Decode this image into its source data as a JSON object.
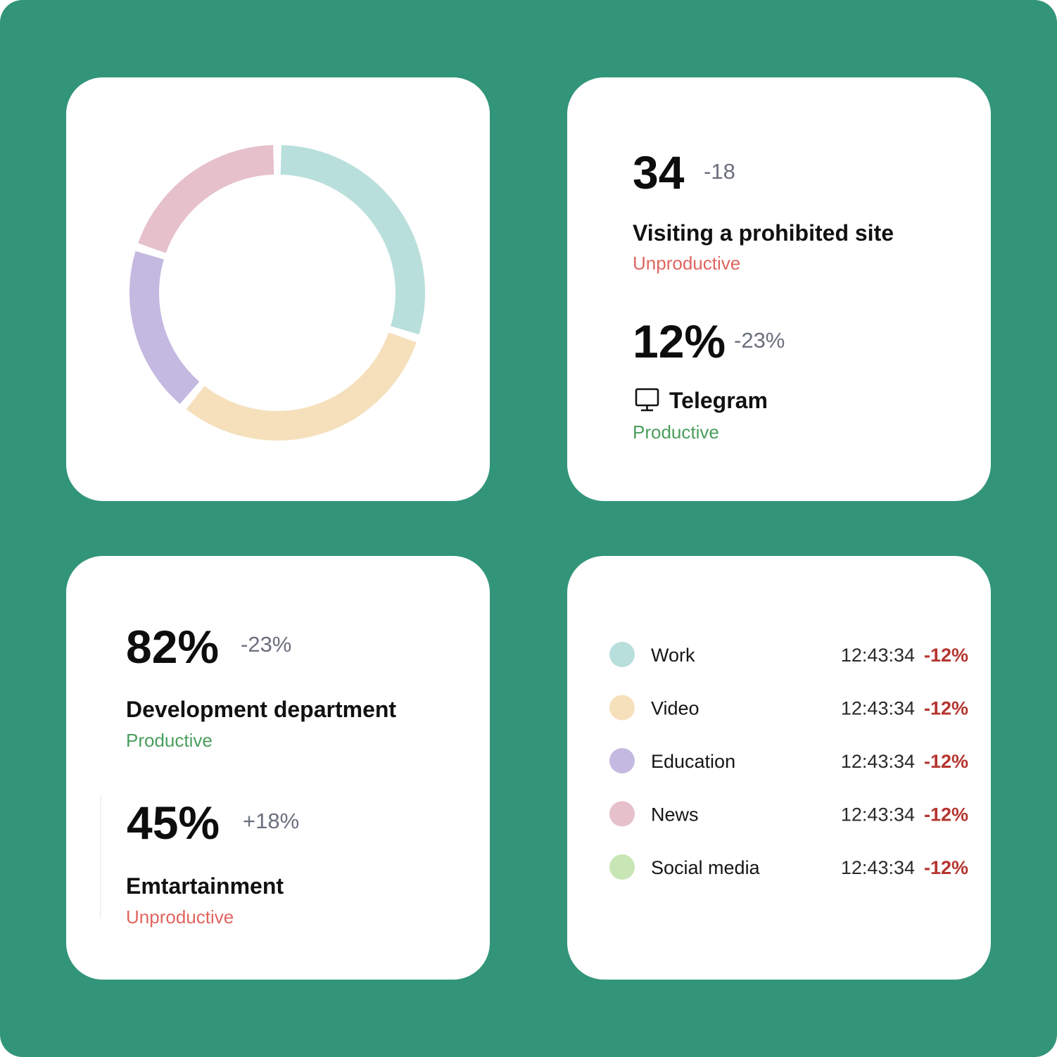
{
  "chart_data": {
    "type": "pie",
    "donut": true,
    "categories": [
      "Work",
      "Video",
      "Education",
      "News",
      "Social media"
    ],
    "values": [
      30,
      31,
      19,
      20,
      0
    ],
    "colors": [
      "#b9dfdc",
      "#f6e0bc",
      "#c4b9e0",
      "#e6c0ca",
      "#c8e6b5"
    ]
  },
  "legend": {
    "items": [
      {
        "time": "12:43:34",
        "change": "-12%"
      },
      {
        "time": "12:43:34",
        "change": "-12%"
      },
      {
        "time": "12:43:34",
        "change": "-12%"
      },
      {
        "time": "12:43:34",
        "change": "-12%"
      },
      {
        "time": "12:43:34",
        "change": "-12%"
      }
    ]
  },
  "stats_card": {
    "first": {
      "value": "34",
      "delta": "-18",
      "title": "Visiting a prohibited site",
      "status": "Unproductive"
    },
    "second": {
      "value": "12%",
      "delta": "-23%",
      "title": "Telegram",
      "status": "Productive"
    }
  },
  "department_card": {
    "first": {
      "value": "82%",
      "delta": "-23%",
      "title": "Development department",
      "status": "Productive"
    },
    "second": {
      "value": "45%",
      "delta": "+18%",
      "title": "Emtartainment",
      "status": "Unproductive"
    }
  }
}
